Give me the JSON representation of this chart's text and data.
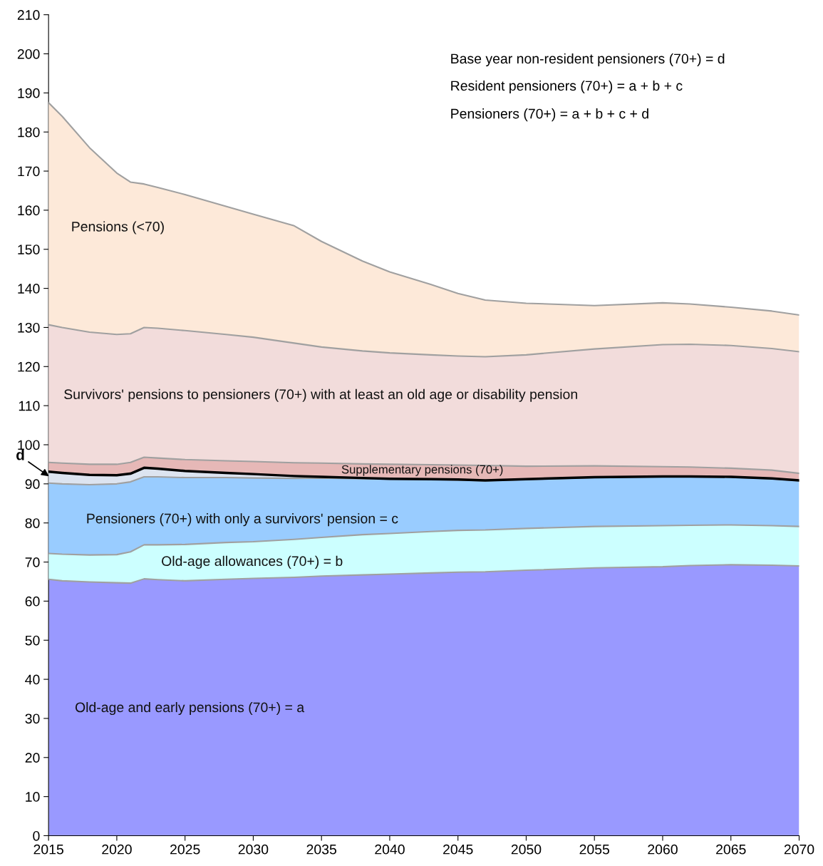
{
  "chart_data": {
    "type": "area",
    "stacked": true,
    "legend": false,
    "grid": false,
    "marker": "none",
    "line_style": "solid",
    "x": [
      2015,
      2016,
      2018,
      2020,
      2021,
      2022,
      2023,
      2025,
      2028,
      2030,
      2033,
      2035,
      2038,
      2040,
      2043,
      2045,
      2047,
      2050,
      2055,
      2060,
      2062,
      2065,
      2068,
      2070
    ],
    "xlim": [
      2015,
      2070
    ],
    "xticks": [
      2015,
      2020,
      2025,
      2030,
      2035,
      2040,
      2045,
      2050,
      2055,
      2060,
      2065,
      2070
    ],
    "ylim": [
      0,
      210
    ],
    "yticks": [
      0,
      10,
      20,
      30,
      40,
      50,
      60,
      70,
      80,
      90,
      100,
      110,
      120,
      130,
      140,
      150,
      160,
      170,
      180,
      190,
      200,
      210
    ],
    "series": [
      {
        "name": "Old-age and early pensions (70+) = a",
        "color": "#9999ff",
        "values": [
          65.6,
          65.2,
          64.9,
          64.7,
          64.6,
          65.7,
          65.5,
          65.2,
          65.6,
          65.8,
          66.1,
          66.4,
          66.7,
          66.9,
          67.2,
          67.4,
          67.5,
          67.9,
          68.5,
          68.8,
          69.1,
          69.3,
          69.2,
          69.0
        ]
      },
      {
        "name": "Old-age allowances (70+) = b",
        "color": "#ccffff",
        "values": [
          6.6,
          6.8,
          6.9,
          7.2,
          8.0,
          8.7,
          8.9,
          9.3,
          9.4,
          9.4,
          9.7,
          9.9,
          10.3,
          10.4,
          10.6,
          10.7,
          10.7,
          10.7,
          10.6,
          10.5,
          10.3,
          10.2,
          10.1,
          10.1
        ]
      },
      {
        "name": "Pensioners (70+) with only a survivors' pension = c",
        "color": "#99ccff",
        "values": [
          18.0,
          18.0,
          18.0,
          18.1,
          17.9,
          17.4,
          17.4,
          17.1,
          16.6,
          16.3,
          15.6,
          15.2,
          14.3,
          13.9,
          13.3,
          12.9,
          12.6,
          12.5,
          12.5,
          12.5,
          12.4,
          12.2,
          12.0,
          11.7
        ]
      },
      {
        "name": "d",
        "color": "#dde4f0",
        "values": [
          2.9,
          2.8,
          2.5,
          2.2,
          2.1,
          2.3,
          2.1,
          1.7,
          1.2,
          1.0,
          0.6,
          0.3,
          0.2,
          0.1,
          0.1,
          0.1,
          0.1,
          0.1,
          0.1,
          0.1,
          0.1,
          0.1,
          0.1,
          0.1
        ]
      },
      {
        "name": "Supplementary pensions (70+)",
        "color": "#e6b8b7",
        "values": [
          2.4,
          2.5,
          2.7,
          2.8,
          2.9,
          2.7,
          2.7,
          2.9,
          3.1,
          3.2,
          3.4,
          3.5,
          3.6,
          3.7,
          3.7,
          3.7,
          3.8,
          3.3,
          2.9,
          2.5,
          2.4,
          2.2,
          2.1,
          1.8
        ]
      },
      {
        "name": "Survivors' pensions to pensioners (70+) with at least an old age or disability pension",
        "color": "#f2dcdb",
        "values": [
          35.2,
          34.7,
          33.8,
          33.2,
          32.9,
          33.2,
          33.2,
          33.0,
          32.3,
          31.8,
          30.6,
          29.7,
          28.9,
          28.5,
          28.1,
          27.9,
          27.8,
          28.5,
          29.9,
          31.2,
          31.4,
          31.4,
          31.1,
          31.1
        ]
      },
      {
        "name": "Pensions (<70)",
        "color": "#fde9d9",
        "values": [
          56.8,
          54.0,
          47.2,
          41.3,
          38.8,
          36.7,
          36.0,
          34.8,
          32.8,
          31.5,
          30.0,
          27.0,
          23.0,
          20.7,
          18.0,
          16.0,
          14.5,
          13.2,
          11.1,
          10.7,
          10.3,
          9.8,
          9.6,
          9.4
        ]
      }
    ],
    "annotations": [
      "Base year non-resident pensioners (70+) = d",
      "Resident pensioners (70+) = a + b + c",
      "Pensioners (70+) = a + b + c + d"
    ]
  }
}
